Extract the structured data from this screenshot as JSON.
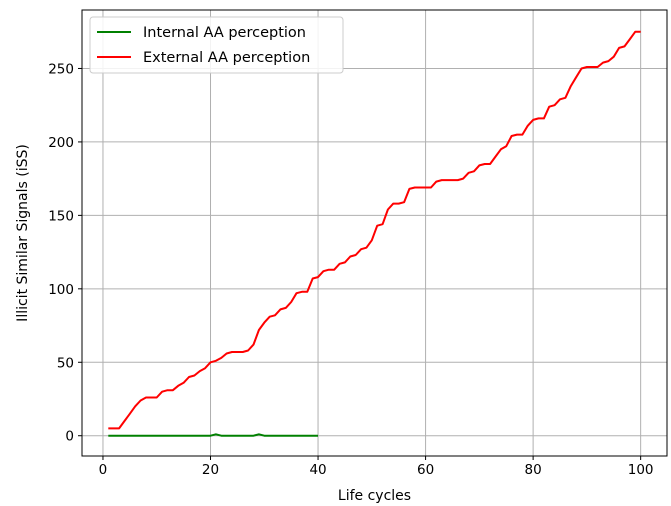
{
  "chart_data": {
    "type": "line",
    "title": "",
    "xlabel": "Life cycles",
    "ylabel": "Illicit Similar Signals (iSS)",
    "xlim": [
      -3.9,
      104.9
    ],
    "ylim": [
      -13.8,
      289.8
    ],
    "xticks": [
      0,
      20,
      40,
      60,
      80,
      100
    ],
    "yticks": [
      0,
      50,
      100,
      150,
      200,
      250
    ],
    "grid": true,
    "legend_position": "top-left",
    "series": [
      {
        "name": "Internal AA perception",
        "color": "#008000",
        "x": [
          1,
          2,
          3,
          4,
          5,
          6,
          7,
          8,
          9,
          10,
          11,
          12,
          13,
          14,
          15,
          16,
          17,
          18,
          19,
          20,
          21,
          22,
          23,
          24,
          25,
          26,
          27,
          28,
          29,
          30,
          31,
          32,
          33,
          34,
          35,
          36,
          37,
          38,
          39,
          40
        ],
        "y": [
          0,
          0,
          0,
          0,
          0,
          0,
          0,
          0,
          0,
          0,
          0,
          0,
          0,
          0,
          0,
          0,
          0,
          0,
          0,
          0,
          1,
          0,
          0,
          0,
          0,
          0,
          0,
          0,
          1,
          0,
          0,
          0,
          0,
          0,
          0,
          0,
          0,
          0,
          0,
          0
        ]
      },
      {
        "name": "External AA perception",
        "color": "#ff0000",
        "x": [
          1,
          2,
          3,
          4,
          5,
          6,
          7,
          8,
          9,
          10,
          11,
          12,
          13,
          14,
          15,
          16,
          17,
          18,
          19,
          20,
          21,
          22,
          23,
          24,
          25,
          26,
          27,
          28,
          29,
          30,
          31,
          32,
          33,
          34,
          35,
          36,
          37,
          38,
          39,
          40,
          41,
          42,
          43,
          44,
          45,
          46,
          47,
          48,
          49,
          50,
          51,
          52,
          53,
          54,
          55,
          56,
          57,
          58,
          59,
          60,
          61,
          62,
          63,
          64,
          65,
          66,
          67,
          68,
          69,
          70,
          71,
          72,
          73,
          74,
          75,
          76,
          77,
          78,
          79,
          80,
          81,
          82,
          83,
          84,
          85,
          86,
          87,
          88,
          89,
          90,
          91,
          92,
          93,
          94,
          95,
          96,
          97,
          98,
          99,
          100
        ],
        "y": [
          5,
          5,
          5,
          10,
          15,
          20,
          24,
          26,
          26,
          26,
          30,
          31,
          31,
          34,
          36,
          40,
          41,
          44,
          46,
          50,
          51,
          53,
          56,
          57,
          57,
          57,
          58,
          62,
          72,
          77,
          81,
          82,
          86,
          87,
          91,
          97,
          98,
          98,
          107,
          108,
          112,
          113,
          113,
          117,
          118,
          122,
          123,
          127,
          128,
          133,
          143,
          144,
          154,
          158,
          158,
          159,
          168,
          169,
          169,
          169,
          169,
          173,
          174,
          174,
          174,
          174,
          175,
          179,
          180,
          184,
          185,
          185,
          190,
          195,
          197,
          204,
          205,
          205,
          211,
          215,
          216,
          216,
          224,
          225,
          229,
          230,
          238,
          244,
          250,
          251,
          251,
          251,
          254,
          255,
          258,
          264,
          265,
          270,
          275,
          275
        ]
      }
    ]
  }
}
